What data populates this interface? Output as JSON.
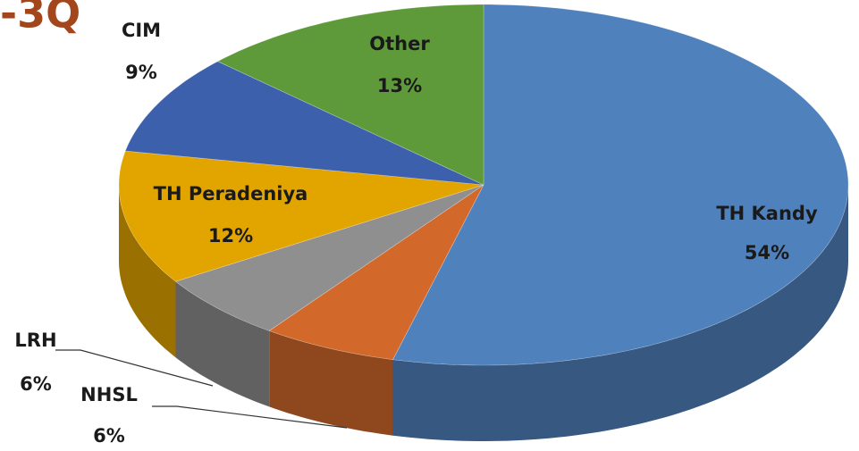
{
  "chart_data": {
    "type": "pie3d",
    "title": "-3Q",
    "categories": [
      "TH Kandy",
      "NHSL",
      "LRH",
      "TH Peradeniya",
      "CIM",
      "Other"
    ],
    "values": [
      54,
      6,
      6,
      12,
      9,
      13
    ],
    "value_labels": [
      "54%",
      "6%",
      "6%",
      "12%",
      "9%",
      "13%"
    ],
    "colors": [
      "#4f81bd",
      "#d2692a",
      "#8f8f8f",
      "#e2a500",
      "#3d60ad",
      "#5f9a3a"
    ]
  }
}
